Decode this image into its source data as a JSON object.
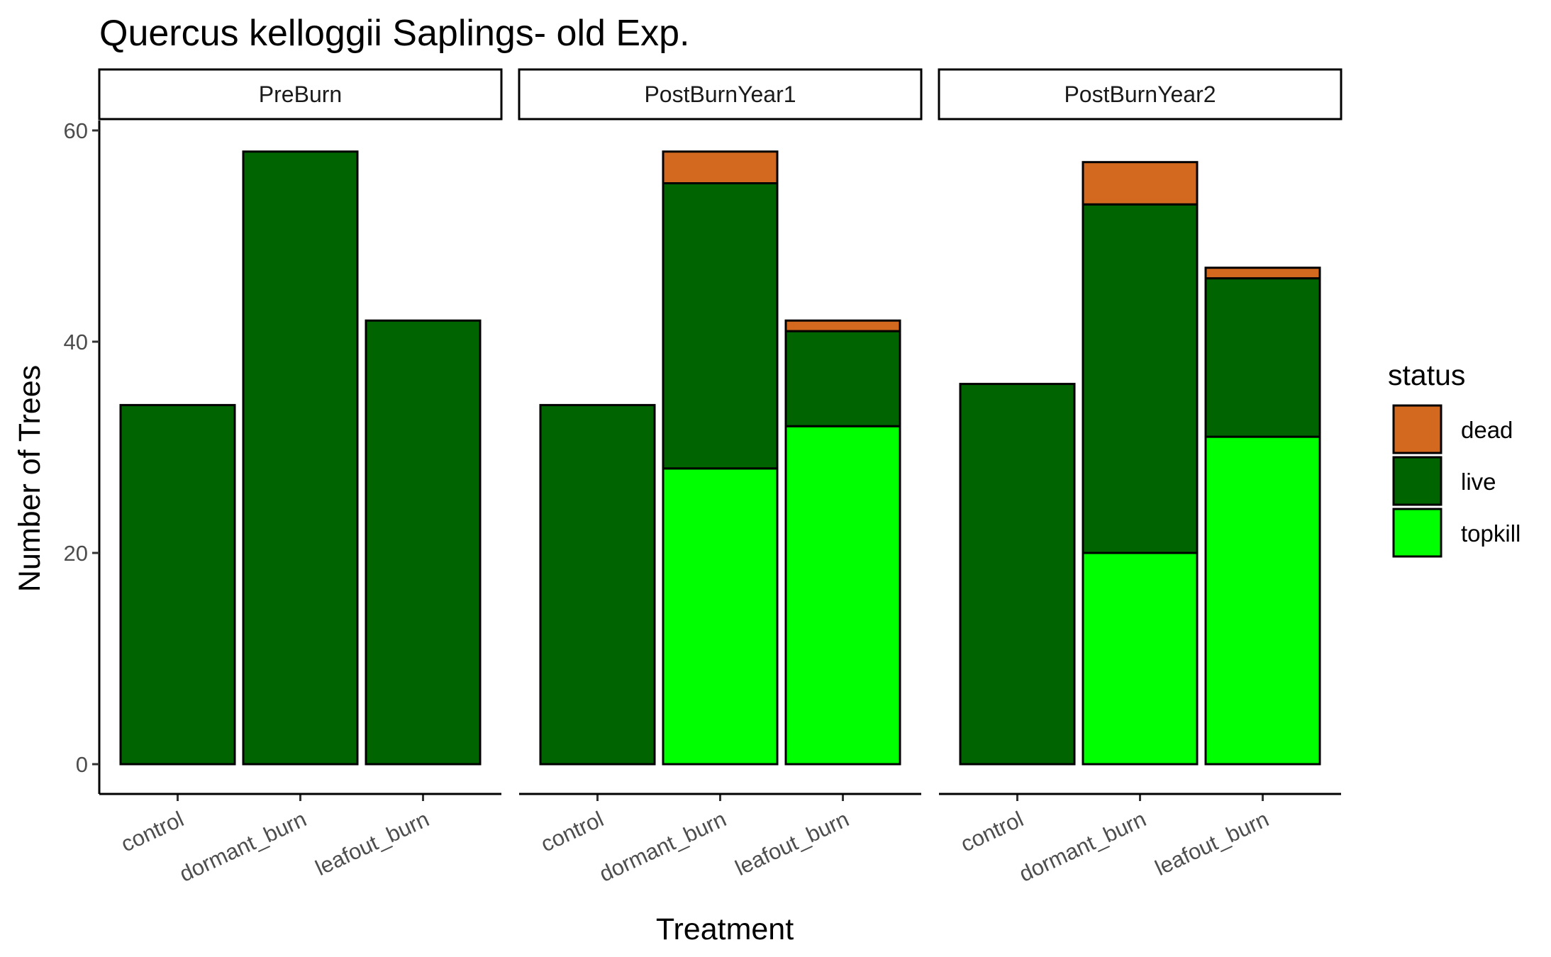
{
  "chart_data": {
    "type": "bar",
    "stacked": true,
    "title": "Quercus kelloggii Saplings- old Exp.",
    "xlabel": "Treatment",
    "ylabel": "Number of Trees",
    "ylim": [
      0,
      63
    ],
    "yticks": [
      0,
      20,
      40,
      60
    ],
    "categories": [
      "control",
      "dormant_burn",
      "leafout_burn"
    ],
    "legend": {
      "title": "status",
      "position": "right",
      "entries": [
        {
          "key": "dead",
          "label": "dead",
          "color": "#D2691E"
        },
        {
          "key": "live",
          "label": "live",
          "color": "#006400"
        },
        {
          "key": "topkill",
          "label": "topkill",
          "color": "#00FF00"
        }
      ]
    },
    "panels": [
      {
        "name": "PreBurn",
        "series": [
          {
            "name": "topkill",
            "values": [
              0,
              0,
              0
            ]
          },
          {
            "name": "live",
            "values": [
              34,
              58,
              42
            ]
          },
          {
            "name": "dead",
            "values": [
              0,
              0,
              0
            ]
          }
        ]
      },
      {
        "name": "PostBurnYear1",
        "series": [
          {
            "name": "topkill",
            "values": [
              0,
              28,
              32
            ]
          },
          {
            "name": "live",
            "values": [
              34,
              27,
              9
            ]
          },
          {
            "name": "dead",
            "values": [
              0,
              3,
              1
            ]
          }
        ]
      },
      {
        "name": "PostBurnYear2",
        "series": [
          {
            "name": "topkill",
            "values": [
              0,
              20,
              31
            ]
          },
          {
            "name": "live",
            "values": [
              36,
              33,
              15
            ]
          },
          {
            "name": "dead",
            "values": [
              0,
              4,
              1
            ]
          }
        ]
      }
    ],
    "grid": false
  }
}
